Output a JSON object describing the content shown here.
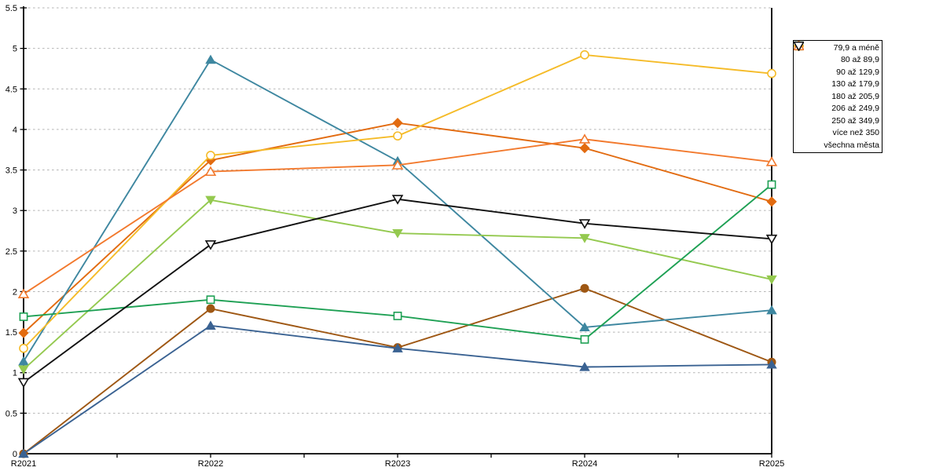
{
  "chart_data": {
    "type": "line",
    "title": "",
    "xlabel": "",
    "ylabel": "",
    "x": [
      "R2021",
      "R2022",
      "R2023",
      "R2024",
      "R2025"
    ],
    "ylim": [
      0,
      5.5
    ],
    "ytick_step": 0.5,
    "ytick_labels": [
      "0",
      "0.5",
      "1",
      "1.5",
      "2",
      "2.5",
      "3",
      "3.5",
      "4",
      "4.5",
      "5",
      "5.5"
    ],
    "grid": "horizontal-dashed",
    "legend_position": "right",
    "series": [
      {
        "name": "79,9 a méně",
        "marker": "diamond",
        "marker_fill": "filled",
        "color": "#E26B10",
        "values": [
          1.49,
          3.62,
          4.08,
          3.77,
          3.11
        ]
      },
      {
        "name": "80 až 89,9",
        "marker": "circle",
        "marker_fill": "filled",
        "color": "#9E5713",
        "values": [
          0.0,
          1.79,
          1.31,
          2.04,
          1.13
        ]
      },
      {
        "name": "90 až 129,9",
        "marker": "triangle-up",
        "marker_fill": "filled",
        "color": "#3E87A0",
        "values": [
          1.14,
          4.86,
          3.61,
          1.56,
          1.77
        ]
      },
      {
        "name": "130 až 179,9",
        "marker": "triangle-up",
        "marker_fill": "filled",
        "color": "#3A6292",
        "values": [
          0.0,
          1.58,
          1.3,
          1.07,
          1.1
        ]
      },
      {
        "name": "180 až 205,9",
        "marker": "triangle-down",
        "marker_fill": "filled",
        "color": "#94C94F",
        "values": [
          1.04,
          3.13,
          2.72,
          2.66,
          2.15
        ]
      },
      {
        "name": "206 až 249,9",
        "marker": "square",
        "marker_fill": "open",
        "color": "#1EA054",
        "values": [
          1.69,
          1.9,
          1.7,
          1.41,
          3.32
        ]
      },
      {
        "name": "250 až 349,9",
        "marker": "circle",
        "marker_fill": "open",
        "color": "#F5BB28",
        "values": [
          1.3,
          3.68,
          3.92,
          4.92,
          4.69
        ]
      },
      {
        "name": "více než 350",
        "marker": "triangle-up",
        "marker_fill": "open",
        "color": "#F2792D",
        "values": [
          1.97,
          3.48,
          3.56,
          3.88,
          3.6
        ]
      },
      {
        "name": "všechna města",
        "marker": "triangle-down",
        "marker_fill": "open",
        "color": "#111111",
        "values": [
          0.88,
          2.58,
          3.14,
          2.84,
          2.65
        ]
      }
    ]
  },
  "colors": {
    "background": "#ffffff",
    "axis": "#000000",
    "gridline": "#b5b5b5",
    "legend_border": "#000000",
    "text": "#000000"
  }
}
